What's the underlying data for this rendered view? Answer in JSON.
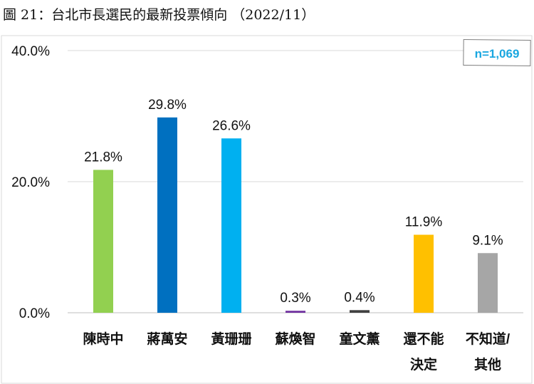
{
  "title": "圖 21：台北市長選民的最新投票傾向 （2022/11）",
  "chart_data": {
    "type": "bar",
    "title": "圖 21：台北市長選民的最新投票傾向 （2022/11）",
    "annotation": "n=1,069",
    "categories": [
      [
        "陳時中"
      ],
      [
        "蔣萬安"
      ],
      [
        "黃珊珊"
      ],
      [
        "蘇煥智"
      ],
      [
        "童文薰"
      ],
      [
        "還不能",
        "決定"
      ],
      [
        "不知道/",
        "其他"
      ]
    ],
    "values": [
      21.8,
      29.8,
      26.6,
      0.3,
      0.4,
      11.9,
      9.1
    ],
    "value_labels": [
      "21.8%",
      "29.8%",
      "26.6%",
      "0.3%",
      "0.4%",
      "11.9%",
      "9.1%"
    ],
    "colors": [
      "#92d050",
      "#0070c0",
      "#00b0f0",
      "#7030a0",
      "#404040",
      "#ffc000",
      "#a6a6a6"
    ],
    "ylim": [
      0,
      40
    ],
    "yticks": [
      {
        "v": 0,
        "label": "0.0%"
      },
      {
        "v": 20,
        "label": "20.0%"
      },
      {
        "v": 40,
        "label": "40.0%"
      }
    ],
    "grid": true,
    "annotation_color": "#1aa7e0"
  }
}
